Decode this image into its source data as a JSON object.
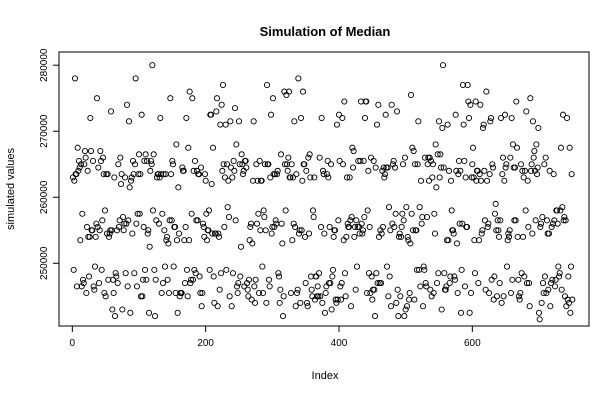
{
  "chart_data": {
    "type": "scatter",
    "title": "Simulation of Median",
    "xlabel": "Index",
    "ylabel": "simulated values",
    "xlim": [
      -20,
      775
    ],
    "ylim": [
      240500,
      282000
    ],
    "x_ticks": [
      0,
      200,
      400,
      600
    ],
    "y_ticks": [
      250000,
      260000,
      270000,
      280000
    ],
    "grid": false,
    "legend": "none",
    "marker": "open-circle",
    "n_points": 750,
    "levels": [
      241500,
      242000,
      242500,
      243000,
      243500,
      244000,
      244500,
      245000,
      245500,
      246000,
      246500,
      247000,
      247500,
      248000,
      248500,
      249000,
      249500,
      252500,
      253000,
      253500,
      254000,
      254500,
      255000,
      255500,
      256000,
      256500,
      257000,
      257500,
      258000,
      258500,
      259000,
      261500,
      262000,
      262500,
      263000,
      263500,
      264000,
      264500,
      265000,
      265500,
      266000,
      266500,
      267000,
      267500,
      268000,
      270500,
      271000,
      271500,
      272000,
      272500,
      273000,
      273500,
      274000,
      274500,
      275000,
      275500,
      276000,
      276500,
      277000,
      278000,
      280000
    ],
    "weights": [
      1,
      1,
      2,
      2,
      4,
      5,
      6,
      7,
      8,
      8,
      8,
      7,
      7,
      6,
      5,
      3,
      2,
      1,
      3,
      5,
      7,
      8,
      9,
      9,
      8,
      7,
      6,
      4,
      3,
      2,
      1,
      1,
      3,
      5,
      7,
      8,
      9,
      9,
      8,
      7,
      5,
      4,
      3,
      2,
      1,
      1,
      2,
      3,
      3,
      3,
      2,
      2,
      2,
      2,
      2,
      1,
      1,
      1,
      1,
      1,
      1
    ]
  }
}
